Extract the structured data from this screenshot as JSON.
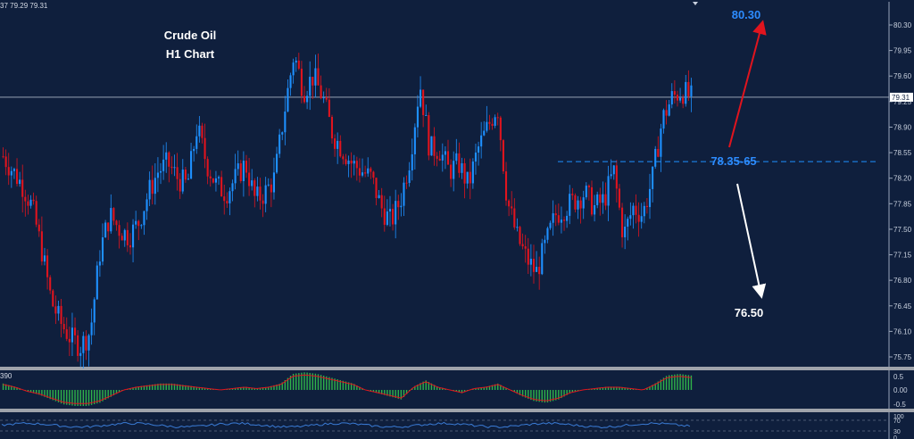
{
  "header_text": "37 79.29 79.31",
  "title_line1": "Crude Oil",
  "title_line2": "H1 Chart",
  "current_price_label": "79.31",
  "target_up_label": "80.30",
  "zone_label": "78.35-65",
  "target_down_label": "76.50",
  "macd_label": "390",
  "colors": {
    "background": "#0f1f3d",
    "bull_candle": "#1e90ff",
    "bear_candle": "#e0141e",
    "axis_text": "#c8d0de",
    "up_arrow": "#e0141e",
    "down_arrow": "#ffffff",
    "zone_line": "#1e90ff",
    "rsi_line": "#3a7bd5",
    "macd_hist": "#2fb34a",
    "macd_signal": "#e0141e"
  },
  "chart_data": {
    "type": "candlestick",
    "y_axis_ticks": [
      "80.30",
      "79.95",
      "79.60",
      "79.25",
      "78.90",
      "78.55",
      "78.20",
      "77.85",
      "77.50",
      "77.15",
      "76.80",
      "76.45",
      "76.10",
      "75.75"
    ],
    "ylim": [
      75.6,
      80.45
    ],
    "current_price": 79.31,
    "resistance_zone": [
      78.35,
      78.65
    ],
    "targets": {
      "up": 80.3,
      "down": 76.5
    },
    "close_path": [
      78.5,
      78.3,
      78.1,
      77.8,
      77.2,
      76.5,
      76.2,
      76.0,
      75.9,
      76.1,
      77.2,
      77.7,
      77.5,
      77.4,
      77.6,
      78.0,
      78.3,
      78.4,
      78.2,
      78.1,
      78.9,
      78.4,
      78.1,
      78.0,
      78.2,
      78.4,
      77.9,
      78.0,
      78.2,
      79.1,
      79.9,
      79.4,
      79.6,
      79.3,
      78.8,
      78.6,
      78.4,
      78.3,
      78.2,
      77.8,
      77.6,
      77.9,
      78.5,
      79.5,
      78.6,
      78.6,
      78.3,
      78.4,
      78.1,
      78.6,
      78.9,
      79.2,
      77.9,
      77.4,
      77.1,
      76.9,
      77.3,
      77.7,
      77.8,
      77.9,
      78.0,
      77.8,
      77.9,
      78.3,
      77.4,
      77.8,
      77.7,
      78.2,
      79.0,
      79.3,
      79.4,
      79.3
    ],
    "close_path_start": 78.5,
    "macd_hist": [
      0.2,
      0.1,
      -0.05,
      -0.15,
      -0.3,
      -0.45,
      -0.5,
      -0.5,
      -0.4,
      -0.2,
      0.0,
      0.1,
      0.15,
      0.2,
      0.2,
      0.15,
      0.1,
      0.05,
      0.0,
      0.05,
      0.1,
      0.05,
      0.1,
      0.2,
      0.5,
      0.55,
      0.5,
      0.4,
      0.3,
      0.2,
      0.0,
      -0.1,
      -0.2,
      -0.3,
      0.1,
      0.3,
      0.1,
      0.0,
      -0.1,
      0.05,
      0.1,
      0.2,
      0.0,
      -0.2,
      -0.35,
      -0.4,
      -0.3,
      -0.1,
      0.0,
      0.05,
      0.1,
      0.1,
      0.05,
      0.0,
      0.2,
      0.45,
      0.5,
      0.45
    ],
    "macd_ticks": [
      "0.5",
      "0.00",
      "-0.5"
    ],
    "rsi_ticks": [
      "100",
      "70",
      "30",
      "0"
    ]
  }
}
